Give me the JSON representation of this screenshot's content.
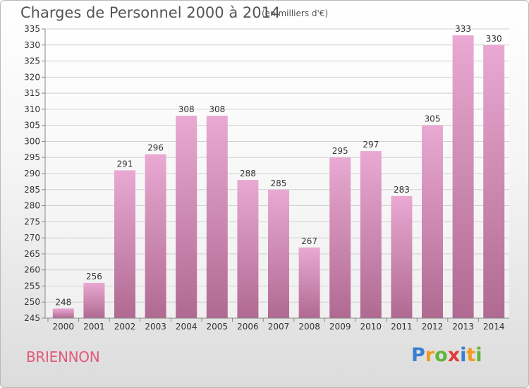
{
  "title": "Charges de Personnel 2000 à 2014",
  "subtitle": "(en milliers d'€)",
  "commune": "BRIENNON",
  "logo": {
    "letters": [
      "P",
      "r",
      "o",
      "x",
      "i",
      "t",
      "i"
    ],
    "colors": [
      "#3a7fd0",
      "#f39a1c",
      "#5fb53a",
      "#e23a3a",
      "#3a7fd0",
      "#f39a1c",
      "#5fb53a"
    ]
  },
  "colors": {
    "bar_top": "#e9a9d2",
    "bar_bottom": "#b06a92",
    "grid": "#d0d0d0",
    "axis_text": "#333333",
    "title": "#555555",
    "commune": "#e05a7a"
  },
  "chart_data": {
    "type": "bar",
    "categories": [
      "2000",
      "2001",
      "2002",
      "2003",
      "2004",
      "2005",
      "2006",
      "2007",
      "2008",
      "2009",
      "2010",
      "2011",
      "2012",
      "2013",
      "2014"
    ],
    "values": [
      248,
      256,
      291,
      296,
      308,
      308,
      288,
      285,
      267,
      295,
      297,
      283,
      305,
      333,
      330
    ],
    "ylim": [
      245,
      335
    ],
    "ytick_step": 5,
    "grid": true
  }
}
